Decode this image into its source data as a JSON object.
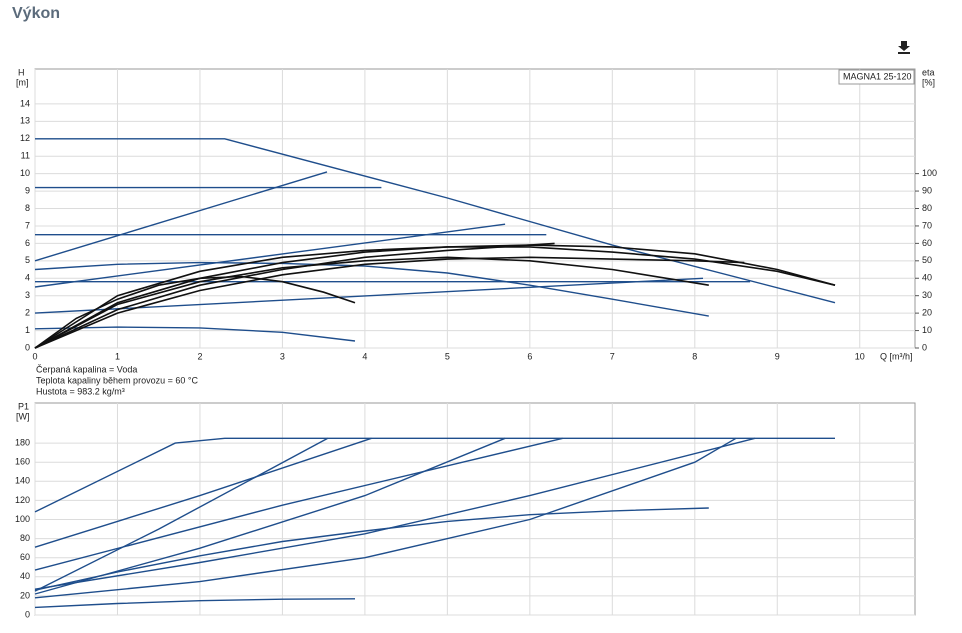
{
  "header": {
    "title": "Výkon"
  },
  "chart_data": [
    {
      "type": "line",
      "product": "MAGNA1 25-120",
      "ylabel": "H",
      "yunit": "[m]",
      "y2label": "eta",
      "y2unit": "[%]",
      "xlabel": "Q [m³/h]",
      "xlim": [
        0,
        10.67
      ],
      "xticks": [
        0,
        1,
        2,
        3,
        4,
        5,
        6,
        7,
        8,
        9,
        10
      ],
      "ylim": [
        0,
        16
      ],
      "yticks": [
        0,
        1,
        2,
        3,
        4,
        5,
        6,
        7,
        8,
        9,
        10,
        11,
        12,
        13,
        14
      ],
      "y2lim": [
        0,
        160
      ],
      "y2ticks": [
        0,
        10,
        20,
        30,
        40,
        50,
        60,
        70,
        80,
        90,
        100
      ],
      "grid": true,
      "notes": [
        "Čerpaná kapalina = Voda",
        "Teplota kapaliny během provozu = 60 °C",
        "Hustota = 983.2 kg/m³"
      ],
      "series": [
        {
          "color": "#1f4e8c",
          "x": [
            0,
            2.3,
            5,
            7,
            9.7
          ],
          "values": [
            12,
            12,
            8.6,
            5.9,
            2.6
          ]
        },
        {
          "color": "#1f4e8c",
          "x": [
            0,
            4.2
          ],
          "values": [
            9.2,
            9.2
          ]
        },
        {
          "color": "#1f4e8c",
          "x": [
            0,
            6.2
          ],
          "values": [
            6.5,
            6.5
          ]
        },
        {
          "color": "#1f4e8c",
          "x": [
            0,
            8.67
          ],
          "values": [
            3.8,
            3.8
          ]
        },
        {
          "color": "#1f4e8c",
          "x": [
            0,
            3.54
          ],
          "values": [
            5,
            10.1
          ]
        },
        {
          "color": "#1f4e8c",
          "x": [
            0,
            5.7
          ],
          "values": [
            3.5,
            7.1
          ]
        },
        {
          "color": "#1f4e8c",
          "x": [
            0,
            8.1
          ],
          "values": [
            2,
            4
          ]
        },
        {
          "color": "#1f4e8c",
          "x": [
            0,
            1,
            2,
            3,
            4,
            5,
            6,
            7,
            8.17
          ],
          "values": [
            4.5,
            4.8,
            4.9,
            4.85,
            4.7,
            4.3,
            3.6,
            2.8,
            1.83
          ]
        },
        {
          "color": "#1f4e8c",
          "x": [
            0,
            1,
            2,
            3,
            3.88
          ],
          "values": [
            1.1,
            1.2,
            1.15,
            0.9,
            0.4
          ]
        },
        {
          "color": "#111111",
          "axis": "y2",
          "x": [
            0,
            0.5,
            1,
            1.5,
            2,
            2.5,
            3,
            3.5,
            3.88
          ],
          "values": [
            0,
            17,
            28,
            36,
            40,
            41,
            38,
            32,
            26
          ]
        },
        {
          "color": "#111111",
          "axis": "y2",
          "x": [
            0,
            1,
            2,
            3,
            4,
            5,
            6,
            7,
            8.17
          ],
          "values": [
            0,
            25,
            38,
            46,
            50,
            52,
            50,
            45,
            36
          ]
        },
        {
          "color": "#111111",
          "axis": "y2",
          "x": [
            0,
            1,
            2,
            3,
            4,
            5,
            6,
            7,
            8,
            9,
            9.7
          ],
          "values": [
            0,
            26,
            40,
            49,
            55,
            58,
            59,
            58,
            54,
            45,
            36
          ]
        },
        {
          "color": "#111111",
          "axis": "y2",
          "x": [
            0,
            1,
            2,
            3,
            4,
            5,
            6,
            7,
            8,
            9,
            9.7
          ],
          "values": [
            0,
            30,
            44,
            52,
            56,
            58,
            58,
            55,
            51,
            44,
            36
          ]
        },
        {
          "color": "#111111",
          "axis": "y2",
          "x": [
            0,
            1,
            2,
            3,
            4,
            5,
            6,
            6.3
          ],
          "values": [
            0,
            22,
            36,
            45,
            52,
            56,
            59,
            60
          ]
        },
        {
          "color": "#111111",
          "axis": "y2",
          "x": [
            0,
            1,
            2,
            3,
            4,
            5,
            6,
            7,
            8,
            8.6
          ],
          "values": [
            0,
            20,
            33,
            42,
            48,
            51,
            52,
            51,
            50,
            49
          ]
        }
      ]
    },
    {
      "type": "line",
      "ylabel": "P1",
      "yunit": "[W]",
      "xlim": [
        0,
        10.67
      ],
      "ylim": [
        0,
        222
      ],
      "yticks": [
        0,
        20,
        40,
        60,
        80,
        100,
        120,
        140,
        160,
        180
      ],
      "grid": true,
      "series": [
        {
          "color": "#1f4e8c",
          "x": [
            0,
            1.7,
            2.3,
            9.7
          ],
          "values": [
            108,
            180,
            185,
            185
          ]
        },
        {
          "color": "#1f4e8c",
          "x": [
            0,
            2,
            4.08
          ],
          "values": [
            71,
            125,
            185
          ]
        },
        {
          "color": "#1f4e8c",
          "x": [
            0,
            1.5,
            3.55
          ],
          "values": [
            25,
            90,
            185
          ]
        },
        {
          "color": "#1f4e8c",
          "x": [
            0,
            3,
            6.4
          ],
          "values": [
            47,
            115,
            185
          ]
        },
        {
          "color": "#1f4e8c",
          "x": [
            0,
            2,
            4,
            5.7
          ],
          "values": [
            22,
            70,
            125,
            185
          ]
        },
        {
          "color": "#1f4e8c",
          "x": [
            0,
            2,
            4,
            6,
            8.73
          ],
          "values": [
            27,
            55,
            85,
            125,
            185
          ]
        },
        {
          "color": "#1f4e8c",
          "x": [
            0,
            2,
            4,
            6,
            8,
            8.5
          ],
          "values": [
            18,
            35,
            60,
            100,
            160,
            185
          ]
        },
        {
          "color": "#1f4e8c",
          "x": [
            0,
            1,
            2,
            3,
            4,
            5,
            6,
            7,
            8.17
          ],
          "values": [
            26,
            45,
            62,
            77,
            88,
            98,
            105,
            109,
            112
          ]
        },
        {
          "color": "#1f4e8c",
          "x": [
            0,
            1,
            2,
            3,
            3.88
          ],
          "values": [
            8,
            12,
            15,
            16.5,
            17
          ]
        }
      ]
    }
  ]
}
